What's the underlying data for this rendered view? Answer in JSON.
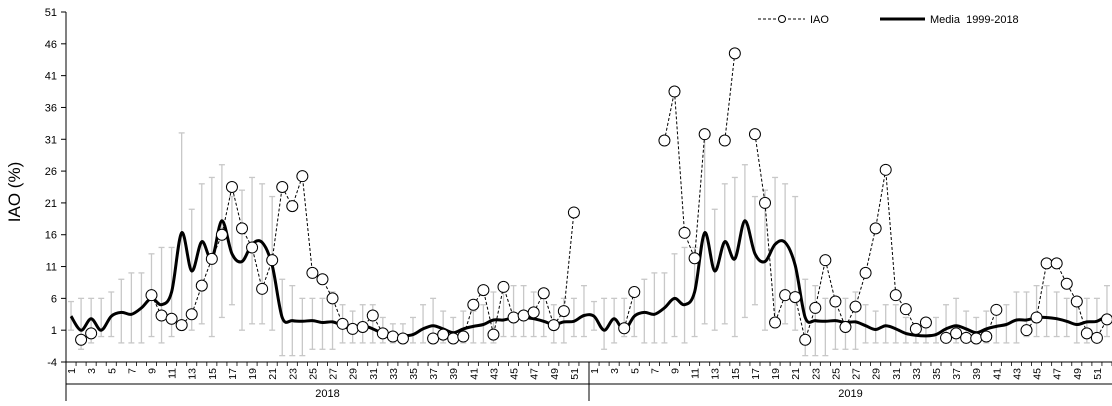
{
  "chart_data": {
    "type": "line",
    "xlabel": "",
    "ylabel": "IAO (%)",
    "ylim": [
      -4,
      51
    ],
    "y_ticks": [
      -4,
      1,
      6,
      11,
      16,
      21,
      26,
      31,
      36,
      41,
      46,
      51
    ],
    "x_tick_labels": [
      "1",
      "3",
      "5",
      "7",
      "9",
      "11",
      "13",
      "15",
      "17",
      "19",
      "21",
      "23",
      "25",
      "27",
      "29",
      "31",
      "33",
      "35",
      "37",
      "39",
      "41",
      "43",
      "45",
      "47",
      "49",
      "51"
    ],
    "years": [
      "2018",
      "2019"
    ],
    "weeks_per_year": 52,
    "legend_position": "top-right",
    "legend": [
      "IAO",
      "Media  1999-2018"
    ],
    "series": [
      {
        "name": "IAO",
        "style": "dashed-with-open-circles",
        "years": [
          [
            null,
            -0.5,
            0.5,
            null,
            null,
            null,
            null,
            null,
            6.5,
            3.3,
            2.8,
            1.8,
            3.5,
            8,
            12.2,
            16,
            23.5,
            17,
            14,
            7.5,
            12,
            23.5,
            20.5,
            25.2,
            10,
            9,
            6,
            2,
            1.2,
            1.5,
            3.3,
            0.5,
            0,
            -0.3,
            null,
            null,
            -0.3,
            0.3,
            -0.3,
            0,
            5,
            7.3,
            0.3,
            7.8,
            3,
            3.3,
            3.8,
            6.8,
            1.8,
            4,
            19.5,
            null
          ],
          [
            null,
            null,
            null,
            1.3,
            7,
            null,
            null,
            30.8,
            38.5,
            16.3,
            12.3,
            31.8,
            null,
            30.8,
            44.5,
            null,
            31.8,
            21,
            2.2,
            6.5,
            6.2,
            -0.5,
            4.5,
            12,
            5.5,
            1.5,
            4.7,
            10,
            17,
            26.2,
            6.5,
            4.3,
            1.2,
            2.2,
            null,
            -0.2,
            0.5,
            -0.2,
            -0.3,
            0,
            4.2,
            null,
            null,
            1,
            3,
            11.5,
            11.5,
            8.3,
            5.5,
            0.5,
            -0.2,
            2.7
          ]
        ]
      },
      {
        "name": "Media  1999-2018",
        "style": "solid-thick",
        "values": [
          3.2,
          1,
          2.8,
          1,
          3.2,
          3.8,
          3.5,
          4.5,
          6,
          5,
          7,
          16.3,
          10.3,
          14.9,
          12.2,
          18.2,
          13,
          11.8,
          14.5,
          14.8,
          11.2,
          3,
          2.5,
          2.4,
          2.5,
          2.2,
          2.3,
          1.7,
          1.1,
          1.7,
          1.2,
          0.5,
          0.2,
          0.1,
          0.3,
          1.2,
          1.7,
          1.2,
          0.6,
          1.2,
          1.6,
          1.9,
          2.6,
          2.6,
          3,
          3,
          2.8,
          2.4,
          1.9,
          2.3,
          2.4,
          3.3
        ],
        "error_bars": [
          [
            1,
            5.5
          ],
          [
            -2,
            6
          ],
          [
            -1,
            6
          ],
          [
            0,
            6
          ],
          [
            0,
            7
          ],
          [
            -1,
            9
          ],
          [
            -1,
            10
          ],
          [
            -1,
            10
          ],
          [
            0,
            13
          ],
          [
            -1,
            14
          ],
          [
            0,
            14
          ],
          [
            2,
            32
          ],
          [
            1,
            20
          ],
          [
            2,
            24
          ],
          [
            0,
            25
          ],
          [
            3,
            27
          ],
          [
            5,
            22
          ],
          [
            1,
            23
          ],
          [
            2,
            25
          ],
          [
            2,
            24
          ],
          [
            1,
            22
          ],
          [
            -3,
            9
          ],
          [
            -3,
            8
          ],
          [
            -3,
            6
          ],
          [
            -2,
            6
          ],
          [
            -2,
            6
          ],
          [
            -2,
            7
          ],
          [
            -1,
            5
          ],
          [
            -1,
            4
          ],
          [
            -1,
            5
          ],
          [
            -1,
            5
          ],
          [
            -1,
            3
          ],
          [
            -1,
            2
          ],
          [
            -1,
            2
          ],
          [
            -1,
            3
          ],
          [
            -1,
            5
          ],
          [
            -1,
            6
          ],
          [
            -1,
            4
          ],
          [
            -1,
            3
          ],
          [
            -1,
            4
          ],
          [
            -1,
            4
          ],
          [
            -1,
            5
          ],
          [
            -1,
            7
          ],
          [
            0,
            7
          ],
          [
            0,
            8
          ],
          [
            0,
            8
          ],
          [
            0,
            7
          ],
          [
            0,
            6
          ],
          [
            -1,
            5
          ],
          [
            -1,
            6
          ],
          [
            0,
            6
          ],
          [
            0,
            8
          ]
        ]
      }
    ]
  }
}
